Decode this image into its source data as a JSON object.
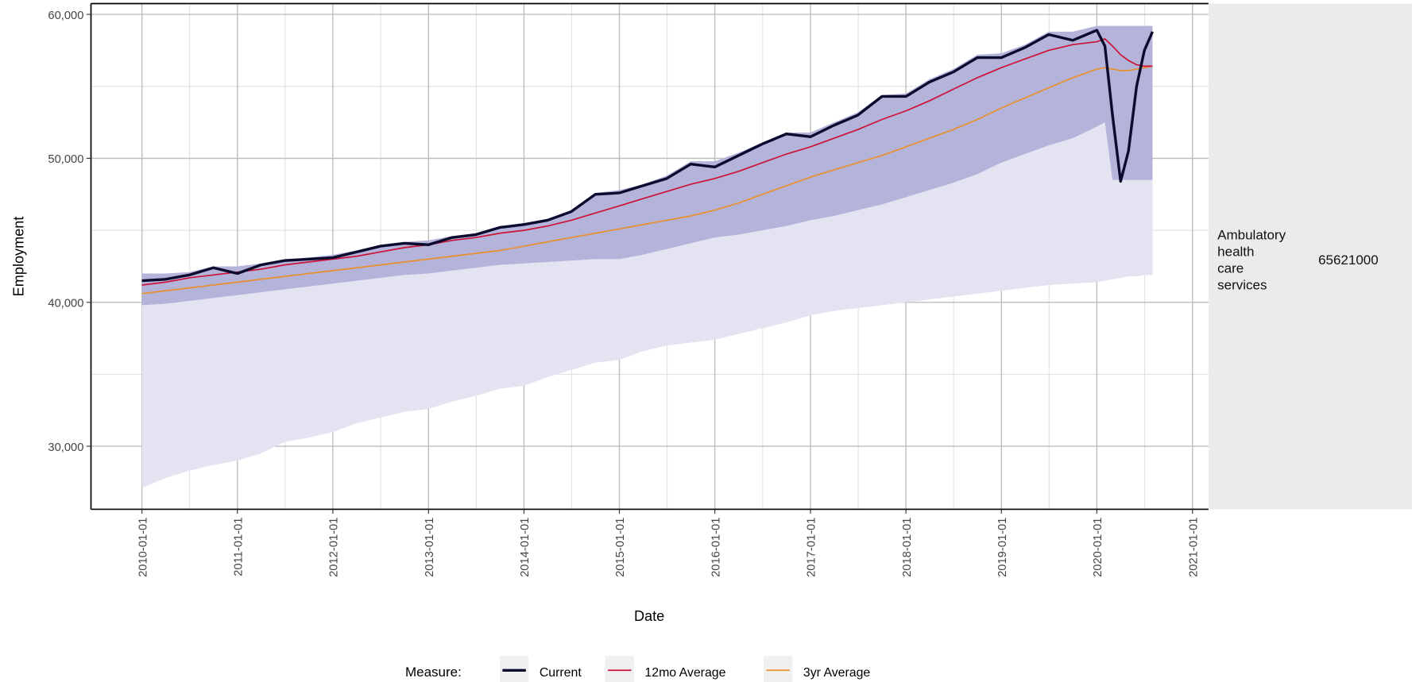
{
  "chart_data": {
    "type": "line",
    "x_label": "Date",
    "y_label": "Employment",
    "legend_title": "Measure:",
    "strip_label": [
      "Ambulatory",
      "health",
      "care",
      "services"
    ],
    "strip_value": "65621000",
    "grid": true,
    "legend_position": "bottom",
    "xlim": [
      "2009-06-20",
      "2021-03-03"
    ],
    "ylim": [
      25625,
      60750
    ],
    "xticks": [
      "2010-01-01",
      "2011-01-01",
      "2012-01-01",
      "2013-01-01",
      "2014-01-01",
      "2015-01-01",
      "2016-01-01",
      "2017-01-01",
      "2018-01-01",
      "2019-01-01",
      "2020-01-01",
      "2021-01-01"
    ],
    "yticks": [
      {
        "value": 30000,
        "label": "30,000"
      },
      {
        "value": 40000,
        "label": "40,000"
      },
      {
        "value": 50000,
        "label": "50,000"
      },
      {
        "value": 60000,
        "label": "60,000"
      }
    ],
    "x": [
      "2010-01-01",
      "2010-04-01",
      "2010-07-01",
      "2010-10-01",
      "2011-01-01",
      "2011-04-01",
      "2011-07-01",
      "2011-10-01",
      "2012-01-01",
      "2012-04-01",
      "2012-07-01",
      "2012-10-01",
      "2013-01-01",
      "2013-04-01",
      "2013-07-01",
      "2013-10-01",
      "2014-01-01",
      "2014-04-01",
      "2014-07-01",
      "2014-10-01",
      "2015-01-01",
      "2015-04-01",
      "2015-07-01",
      "2015-10-01",
      "2016-01-01",
      "2016-04-01",
      "2016-07-01",
      "2016-10-01",
      "2017-01-01",
      "2017-04-01",
      "2017-07-01",
      "2017-10-01",
      "2018-01-01",
      "2018-04-01",
      "2018-07-01",
      "2018-10-01",
      "2019-01-01",
      "2019-04-01",
      "2019-07-01",
      "2019-10-01",
      "2020-01-01",
      "2020-02-01",
      "2020-03-01",
      "2020-04-01",
      "2020-05-01",
      "2020-06-01",
      "2020-07-01",
      "2020-08-01"
    ],
    "bands": [
      {
        "color": "#e3e3f1",
        "lower": [
          27100,
          27800,
          28300,
          28700,
          29000,
          29500,
          30300,
          30600,
          31000,
          31600,
          32000,
          32400,
          32600,
          33100,
          33500,
          34000,
          34200,
          34800,
          35300,
          35800,
          36000,
          36600,
          37000,
          37200,
          37400,
          37800,
          38200,
          38600,
          39100,
          39400,
          39600,
          39800,
          40000,
          40200,
          40400,
          40600,
          40800,
          41000,
          41200,
          41300,
          41400,
          41500,
          41600,
          41700,
          41800,
          41800,
          41900,
          41900
        ],
        "upper": [
          39800,
          39900,
          40100,
          40300,
          40500,
          40700,
          40900,
          41100,
          41300,
          41500,
          41700,
          41900,
          42000,
          42200,
          42400,
          42600,
          42700,
          42800,
          42900,
          43000,
          43000,
          43300,
          43700,
          44100,
          44500,
          44700,
          45000,
          45300,
          45700,
          46000,
          46400,
          46800,
          47300,
          47800,
          48300,
          48900,
          49700,
          50300,
          50900,
          51400,
          52200,
          52500,
          48500,
          48500,
          48500,
          48500,
          48500,
          48500
        ]
      },
      {
        "color": "#b4b4db",
        "lower": [
          39800,
          39900,
          40100,
          40300,
          40500,
          40700,
          40900,
          41100,
          41300,
          41500,
          41700,
          41900,
          42000,
          42200,
          42400,
          42600,
          42700,
          42800,
          42900,
          43000,
          43000,
          43300,
          43700,
          44100,
          44500,
          44700,
          45000,
          45300,
          45700,
          46000,
          46400,
          46800,
          47300,
          47800,
          48300,
          48900,
          49700,
          50300,
          50900,
          51400,
          52200,
          52500,
          48500,
          48500,
          48500,
          48500,
          48500,
          48500
        ],
        "upper": [
          42000,
          42000,
          42100,
          42500,
          42500,
          42700,
          43000,
          43100,
          43300,
          43600,
          44000,
          44200,
          44300,
          44600,
          44800,
          45300,
          45500,
          45800,
          46400,
          47600,
          47800,
          48200,
          48800,
          49800,
          49800,
          50400,
          51100,
          51800,
          51800,
          52500,
          53200,
          54400,
          54500,
          55500,
          56200,
          57200,
          57300,
          57900,
          58800,
          58800,
          59200,
          59200,
          59200,
          59200,
          59200,
          59200,
          59200,
          59200
        ]
      }
    ],
    "series": [
      {
        "name": "Current",
        "color": "#0b0b2e",
        "width": 3,
        "values": [
          41500,
          41600,
          41900,
          42400,
          42000,
          42600,
          42900,
          43000,
          43100,
          43500,
          43900,
          44100,
          44000,
          44500,
          44700,
          45200,
          45400,
          45700,
          46300,
          47500,
          47600,
          48100,
          48600,
          49600,
          49400,
          50200,
          51000,
          51700,
          51500,
          52300,
          53000,
          54300,
          54300,
          55300,
          56000,
          57000,
          57000,
          57700,
          58600,
          58200,
          58900,
          57800,
          53000,
          48400,
          50500,
          55000,
          57500,
          58800
        ]
      },
      {
        "name": "12mo Average",
        "color": "#cc1236",
        "width": 1.5,
        "values": [
          41200,
          41400,
          41700,
          41900,
          42100,
          42300,
          42600,
          42800,
          43000,
          43200,
          43500,
          43800,
          44000,
          44300,
          44500,
          44800,
          45000,
          45300,
          45700,
          46200,
          46700,
          47200,
          47700,
          48200,
          48600,
          49100,
          49700,
          50300,
          50800,
          51400,
          52000,
          52700,
          53300,
          54000,
          54800,
          55600,
          56300,
          56900,
          57500,
          57900,
          58100,
          58300,
          57800,
          57200,
          56800,
          56500,
          56400,
          56400
        ]
      },
      {
        "name": "3yr Average",
        "color": "#e8902e",
        "width": 1.5,
        "values": [
          40600,
          40800,
          41000,
          41200,
          41400,
          41600,
          41800,
          42000,
          42200,
          42400,
          42600,
          42800,
          43000,
          43200,
          43400,
          43600,
          43900,
          44200,
          44500,
          44800,
          45100,
          45400,
          45700,
          46000,
          46400,
          46900,
          47500,
          48100,
          48700,
          49200,
          49700,
          50200,
          50800,
          51400,
          52000,
          52700,
          53500,
          54200,
          54900,
          55600,
          56200,
          56300,
          56200,
          56100,
          56100,
          56200,
          56300,
          56400
        ]
      }
    ]
  }
}
